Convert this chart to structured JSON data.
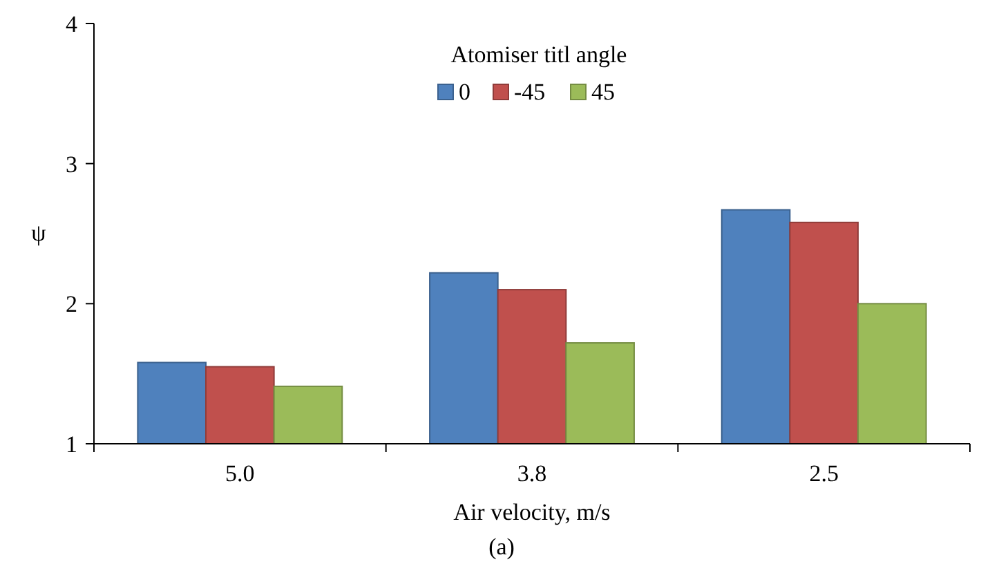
{
  "chart_data": {
    "type": "bar",
    "xlabel": "Air velocity, m/s",
    "ylabel": "ψ",
    "legend_title": "Atomiser titl angle",
    "annotations": [
      "(a)"
    ],
    "categories": [
      "5.0",
      "3.8",
      "2.5"
    ],
    "series": [
      {
        "name": "0",
        "color": "#4f81bd",
        "values": [
          1.58,
          2.22,
          2.67
        ]
      },
      {
        "name": "-45",
        "color": "#c0504d",
        "values": [
          1.55,
          2.1,
          2.58
        ]
      },
      {
        "name": "45",
        "color": "#9bbb59",
        "values": [
          1.41,
          1.72,
          2.0
        ]
      }
    ],
    "ylim": [
      1,
      4
    ],
    "yticks": [
      1,
      2,
      3,
      4
    ],
    "grid": false,
    "legend": "top"
  }
}
